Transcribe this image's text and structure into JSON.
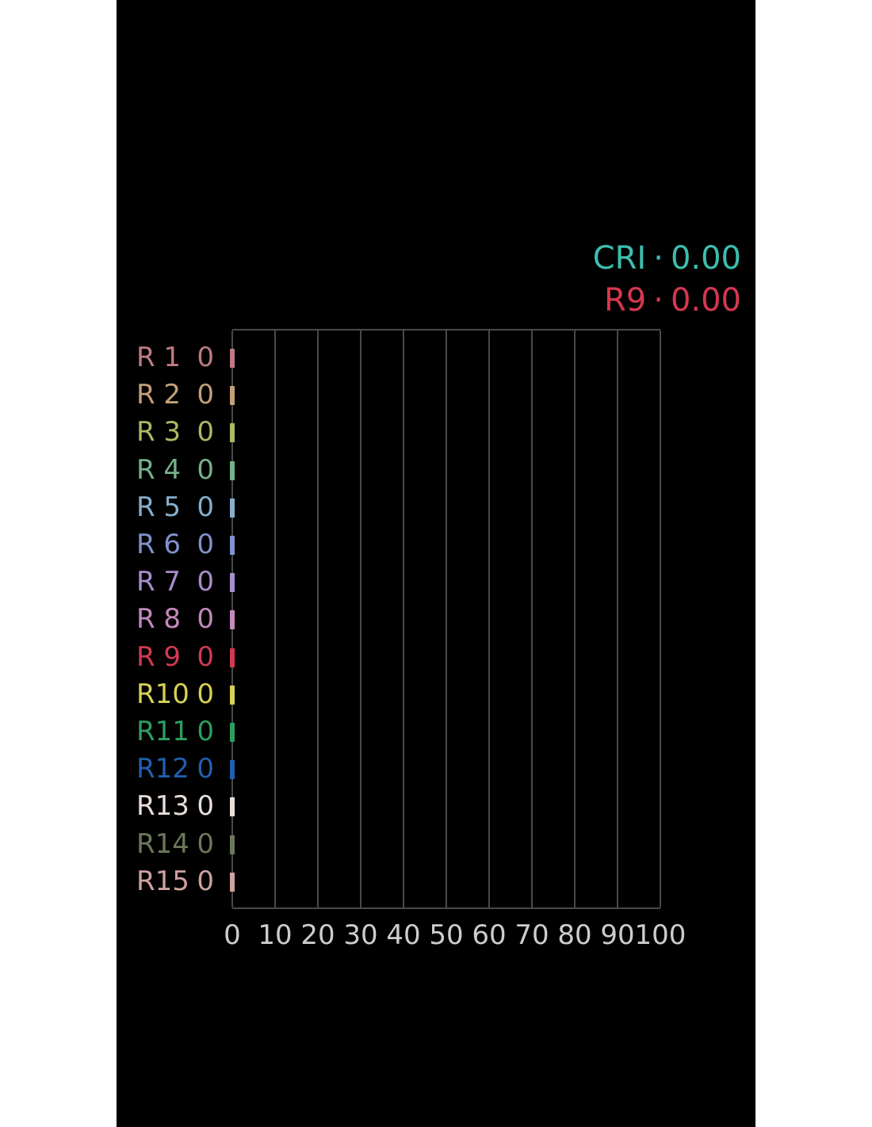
{
  "chart_data": {
    "type": "bar",
    "orientation": "horizontal",
    "title": "",
    "xlabel": "",
    "ylabel": "",
    "xlim": [
      0,
      100
    ],
    "grid": "vertical gridlines every 10, no horizontal gridlines",
    "background": "#000000",
    "grid_color": "#4a4a4a",
    "tick_label_color": "#cdcdcd",
    "x_ticks": [
      "0",
      "10",
      "20",
      "30",
      "40",
      "50",
      "60",
      "70",
      "80",
      "90",
      "100"
    ],
    "summary": [
      {
        "label": "CRI",
        "sep": "·",
        "value": "0.00",
        "color": "#3cbeaf"
      },
      {
        "label": "R9",
        "sep": "·",
        "value": "0.00",
        "color": "#d73750"
      }
    ],
    "rows": [
      {
        "label": "R 1",
        "value": 0,
        "color": "#be7a83"
      },
      {
        "label": "R 2",
        "value": 0,
        "color": "#c2a078"
      },
      {
        "label": "R 3",
        "value": 0,
        "color": "#aeb763"
      },
      {
        "label": "R 4",
        "value": 0,
        "color": "#74b189"
      },
      {
        "label": "R 5",
        "value": 0,
        "color": "#85aecb"
      },
      {
        "label": "R 6",
        "value": 0,
        "color": "#8092cc"
      },
      {
        "label": "R 7",
        "value": 0,
        "color": "#a78ecc"
      },
      {
        "label": "R 8",
        "value": 0,
        "color": "#c489bd"
      },
      {
        "label": "R 9",
        "value": 0,
        "color": "#d23951"
      },
      {
        "label": "R10",
        "value": 0,
        "color": "#d8d055"
      },
      {
        "label": "R11",
        "value": 0,
        "color": "#2d9e5f"
      },
      {
        "label": "R12",
        "value": 0,
        "color": "#2060ae"
      },
      {
        "label": "R13",
        "value": 0,
        "color": "#e8ddd8"
      },
      {
        "label": "R14",
        "value": 0,
        "color": "#6b785a"
      },
      {
        "label": "R15",
        "value": 0,
        "color": "#cfa19f"
      }
    ]
  }
}
